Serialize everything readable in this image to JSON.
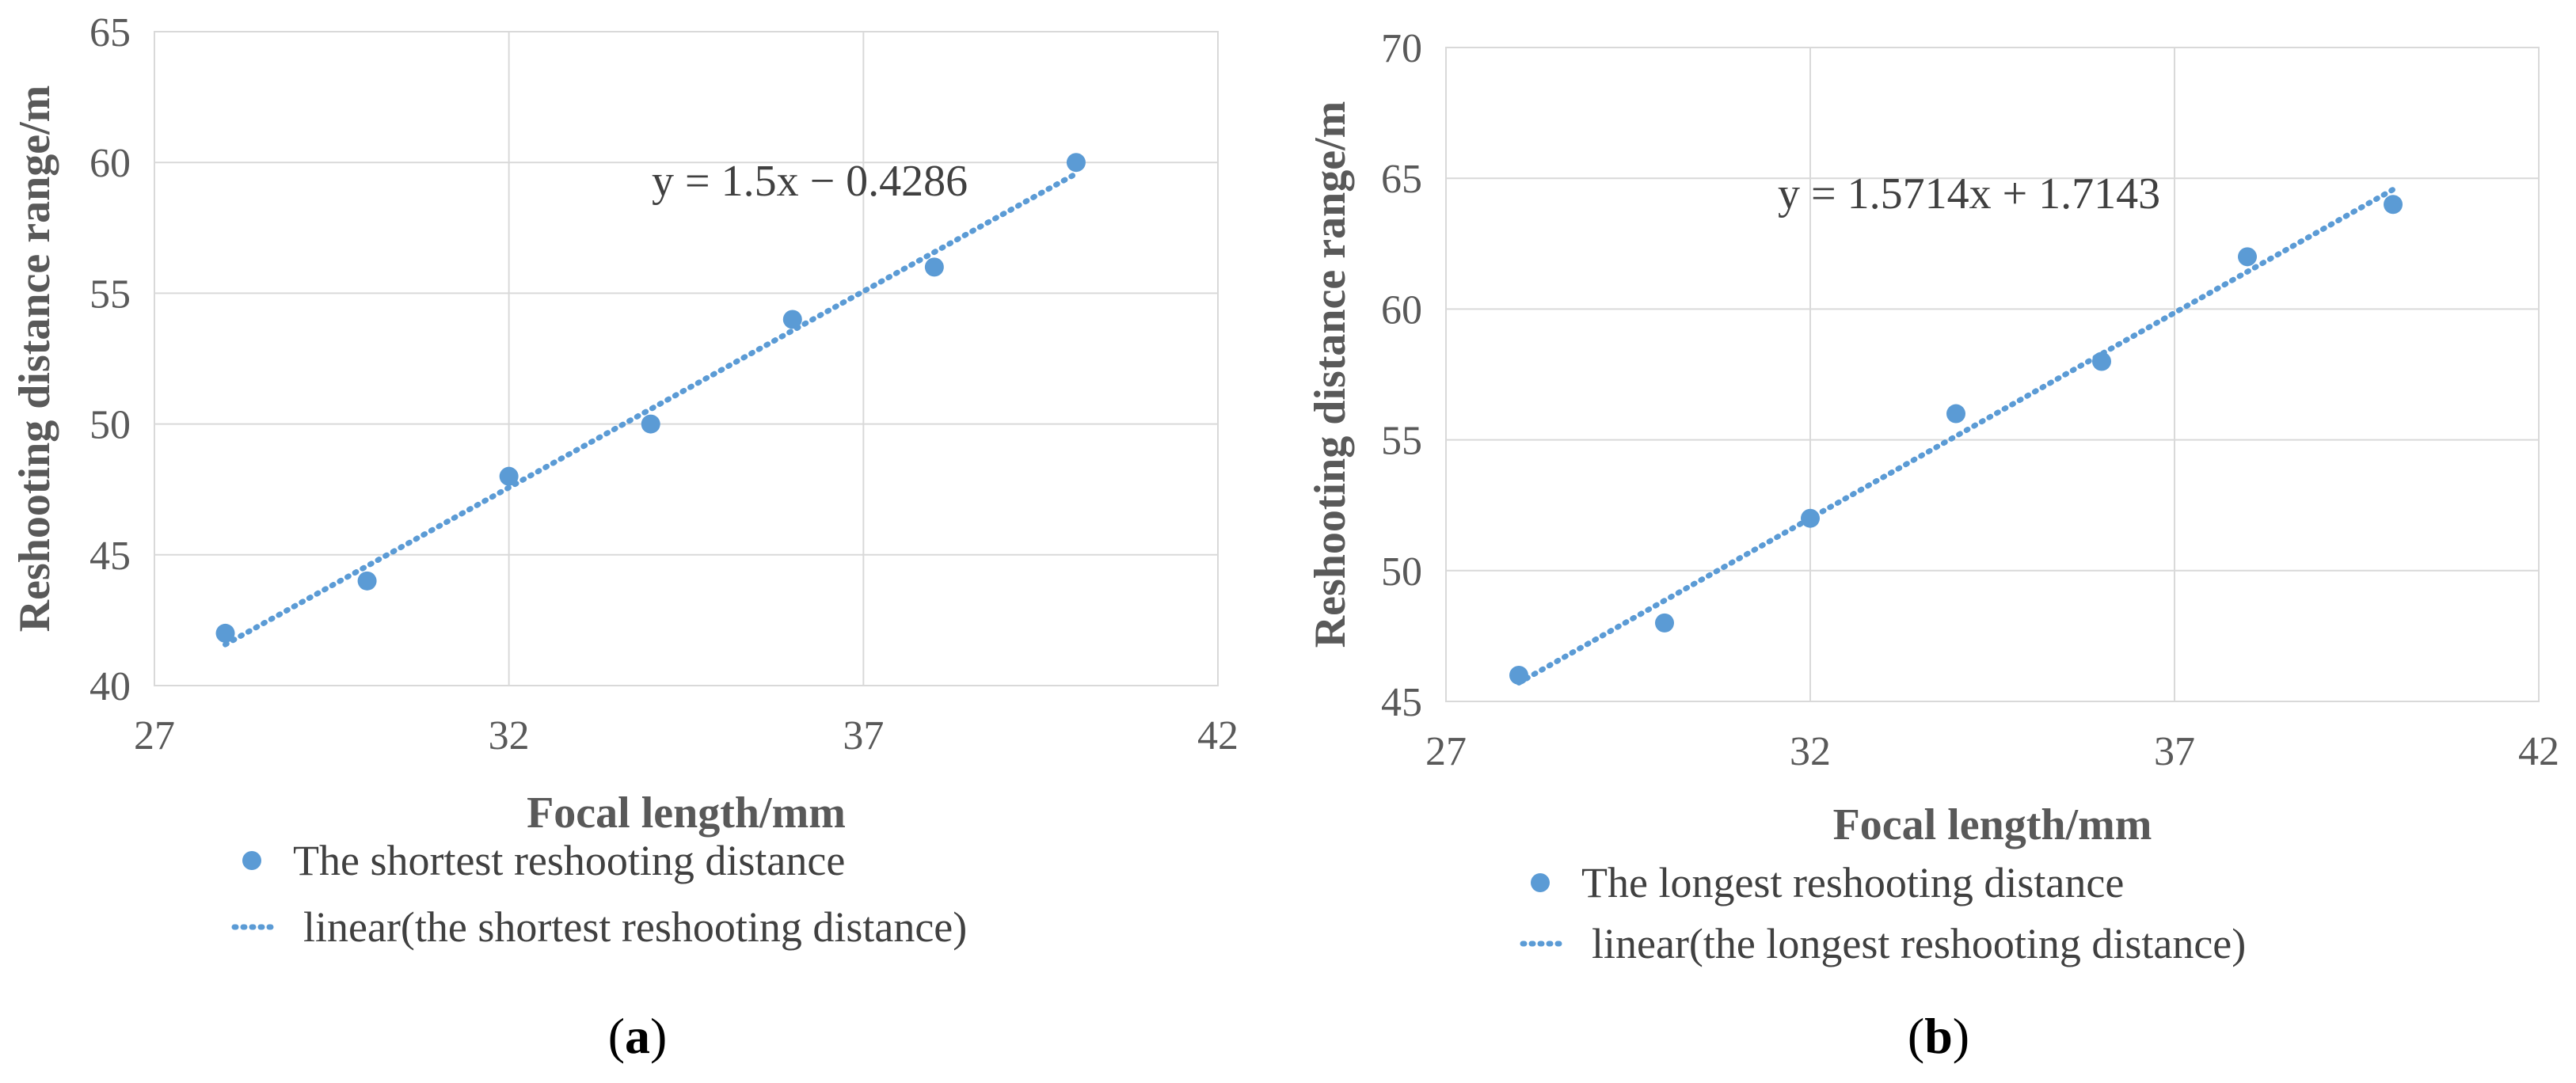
{
  "colors": {
    "series": "#5b9bd5",
    "grid": "#d9d9d9",
    "text": "#595959"
  },
  "chart_data": [
    {
      "type": "scatter",
      "panel_label": "a",
      "title": "",
      "xlabel": "Focal length/mm",
      "ylabel": "Reshooting distance range/m",
      "xlim": [
        27,
        42
      ],
      "ylim": [
        40,
        65
      ],
      "xticks": [
        27,
        32,
        37,
        42
      ],
      "yticks": [
        40,
        45,
        50,
        55,
        60,
        65
      ],
      "grid": true,
      "series": [
        {
          "name": "The shortest reshooting distance",
          "marker": "circle",
          "x": [
            28,
            30,
            32,
            34,
            36,
            38,
            40
          ],
          "y": [
            42,
            44,
            48,
            50,
            54,
            56,
            60
          ]
        }
      ],
      "trendline": {
        "name": "linear(the shortest reshooting distance)",
        "style": "dotted",
        "slope": 1.5,
        "intercept": -0.4286,
        "x_range": [
          28,
          40
        ],
        "equation": "y = 1.5x − 0.4286"
      },
      "legend_position": "bottom"
    },
    {
      "type": "scatter",
      "panel_label": "b",
      "title": "",
      "xlabel": "Focal length/mm",
      "ylabel": "Reshooting distance range/m",
      "xlim": [
        27,
        42
      ],
      "ylim": [
        45,
        70
      ],
      "xticks": [
        27,
        32,
        37,
        42
      ],
      "yticks": [
        45,
        50,
        55,
        60,
        65,
        70
      ],
      "grid": true,
      "series": [
        {
          "name": "The longest reshooting distance",
          "marker": "circle",
          "x": [
            28,
            30,
            32,
            34,
            36,
            38,
            40
          ],
          "y": [
            46,
            48,
            52,
            56,
            58,
            62,
            64
          ]
        }
      ],
      "trendline": {
        "name": "linear(the longest reshooting distance)",
        "style": "dotted",
        "slope": 1.5714,
        "intercept": 1.7143,
        "x_range": [
          28,
          40
        ],
        "equation": "y = 1.5714x + 1.7143"
      },
      "legend_position": "bottom"
    }
  ]
}
